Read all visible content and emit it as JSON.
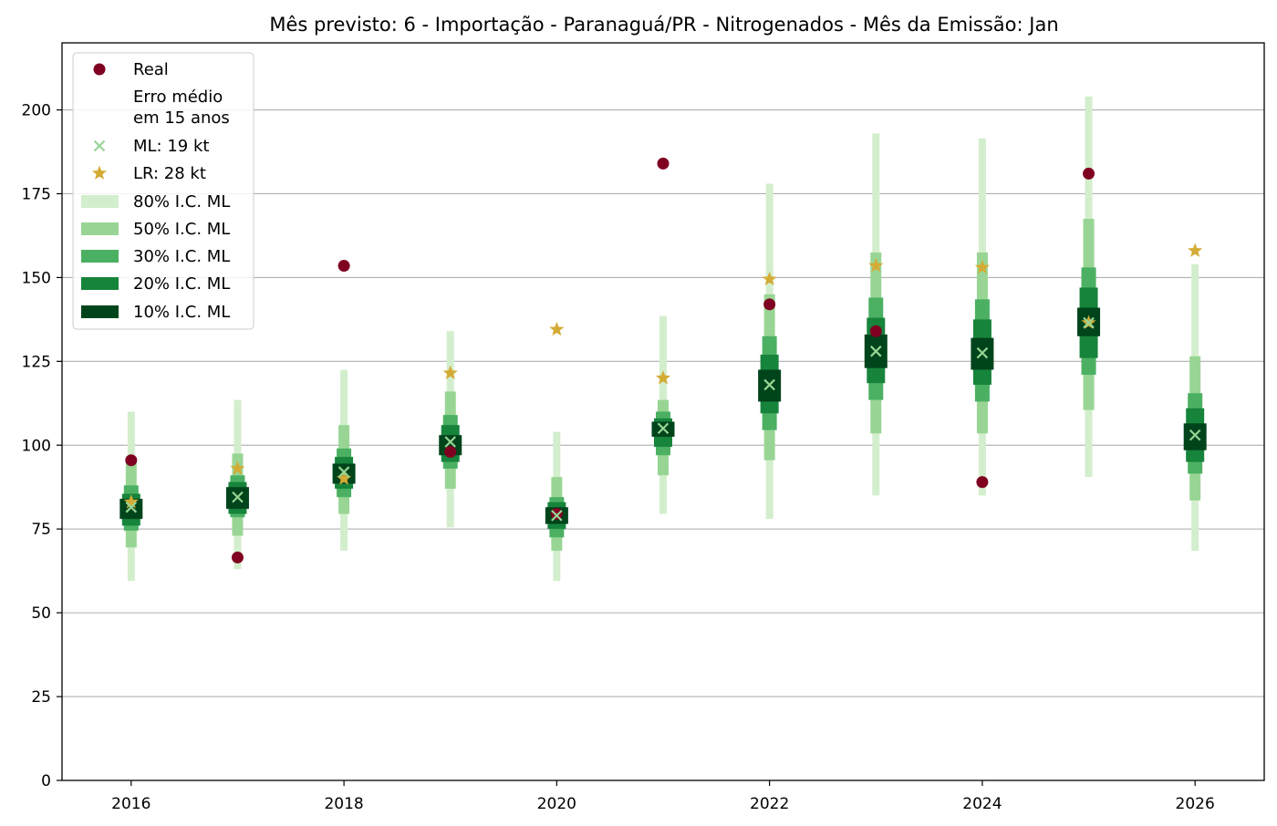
{
  "chart_data": {
    "type": "scatter",
    "title": "Mês previsto: 6 - Importação - Paranaguá/PR - Nitrogenados - Mês da Emissão: Jan",
    "xlabel": "",
    "ylabel": "",
    "xlim": [
      2015.35,
      2026.65
    ],
    "ylim": [
      0,
      220
    ],
    "xticks": [
      2016,
      2018,
      2020,
      2022,
      2024,
      2026
    ],
    "yticks": [
      0,
      25,
      50,
      75,
      100,
      125,
      150,
      175,
      200
    ],
    "grid": "horizontal",
    "legend_position": "top-left",
    "colors": {
      "real": "#7f0020",
      "ml": "#98d594",
      "lr": "#d4ab35",
      "ci80": "#d3eecd",
      "ci50": "#98d594",
      "ci30": "#4bb062",
      "ci20": "#17843c",
      "ci10": "#00441b",
      "grid": "#b0b0b0"
    },
    "legend": [
      {
        "key": "real",
        "label": "Real",
        "marker": "circle"
      },
      {
        "key": "erro",
        "label": "Erro médio\nem 15 anos",
        "marker": "none"
      },
      {
        "key": "ml",
        "label": "ML: 19 kt",
        "marker": "x"
      },
      {
        "key": "lr",
        "label": "LR: 28 kt",
        "marker": "star"
      },
      {
        "key": "ci80",
        "label": "80% I.C. ML",
        "marker": "band"
      },
      {
        "key": "ci50",
        "label": "50% I.C. ML",
        "marker": "band"
      },
      {
        "key": "ci30",
        "label": "30% I.C. ML",
        "marker": "band"
      },
      {
        "key": "ci20",
        "label": "20% I.C. ML",
        "marker": "band"
      },
      {
        "key": "ci10",
        "label": "10% I.C. ML",
        "marker": "band"
      }
    ],
    "x": [
      2016,
      2017,
      2018,
      2019,
      2020,
      2021,
      2022,
      2023,
      2024,
      2025,
      2026
    ],
    "series": [
      {
        "name": "Real",
        "values": [
          95.5,
          66.5,
          153.5,
          98,
          79.5,
          184,
          142,
          134,
          89,
          181,
          null
        ]
      },
      {
        "name": "ML: 19 kt",
        "values": [
          81.5,
          84.5,
          92,
          101,
          79,
          105,
          118,
          128,
          127.5,
          136.5,
          103
        ]
      },
      {
        "name": "LR: 28 kt",
        "values": [
          83,
          93,
          90,
          121.5,
          134.5,
          120,
          149.5,
          153.5,
          153,
          136.5,
          158
        ]
      }
    ],
    "intervals": {
      "ci80": [
        [
          59.5,
          110
        ],
        [
          63,
          113.5
        ],
        [
          68.5,
          122.5
        ],
        [
          75.5,
          134
        ],
        [
          59.5,
          104
        ],
        [
          79.5,
          138.5
        ],
        [
          78,
          178
        ],
        [
          85,
          193
        ],
        [
          85,
          191.5
        ],
        [
          90.5,
          204
        ],
        [
          68.5,
          154
        ]
      ],
      "ci50": [
        [
          69.5,
          95
        ],
        [
          73,
          97.5
        ],
        [
          79.5,
          106
        ],
        [
          87,
          116
        ],
        [
          68.5,
          90.5
        ],
        [
          91,
          113.5
        ],
        [
          95.5,
          145
        ],
        [
          103.5,
          157.5
        ],
        [
          103.5,
          157.5
        ],
        [
          110.5,
          167.5
        ],
        [
          83.5,
          126.5
        ]
      ],
      "ci30": [
        [
          74.5,
          88
        ],
        [
          78.5,
          91
        ],
        [
          84.5,
          99
        ],
        [
          93,
          109
        ],
        [
          72.5,
          84.5
        ],
        [
          97,
          110
        ],
        [
          104.5,
          132.5
        ],
        [
          113.5,
          144
        ],
        [
          113,
          143.5
        ],
        [
          121,
          153
        ],
        [
          91.5,
          115.5
        ]
      ],
      "ci20": [
        [
          76,
          85.5
        ],
        [
          79.5,
          89
        ],
        [
          87,
          96.5
        ],
        [
          95,
          106
        ],
        [
          75,
          83
        ],
        [
          99.5,
          108
        ],
        [
          109.5,
          127
        ],
        [
          118.5,
          138
        ],
        [
          118,
          137.5
        ],
        [
          126,
          147
        ],
        [
          95,
          111
        ]
      ],
      "ci10": [
        [
          78,
          84
        ],
        [
          81,
          87.5
        ],
        [
          88.5,
          94.5
        ],
        [
          97,
          103
        ],
        [
          76.5,
          81.5
        ],
        [
          102.5,
          107
        ],
        [
          113,
          122.5
        ],
        [
          123,
          133
        ],
        [
          122.5,
          132
        ],
        [
          132.5,
          141
        ],
        [
          98.5,
          106.5
        ]
      ]
    }
  }
}
